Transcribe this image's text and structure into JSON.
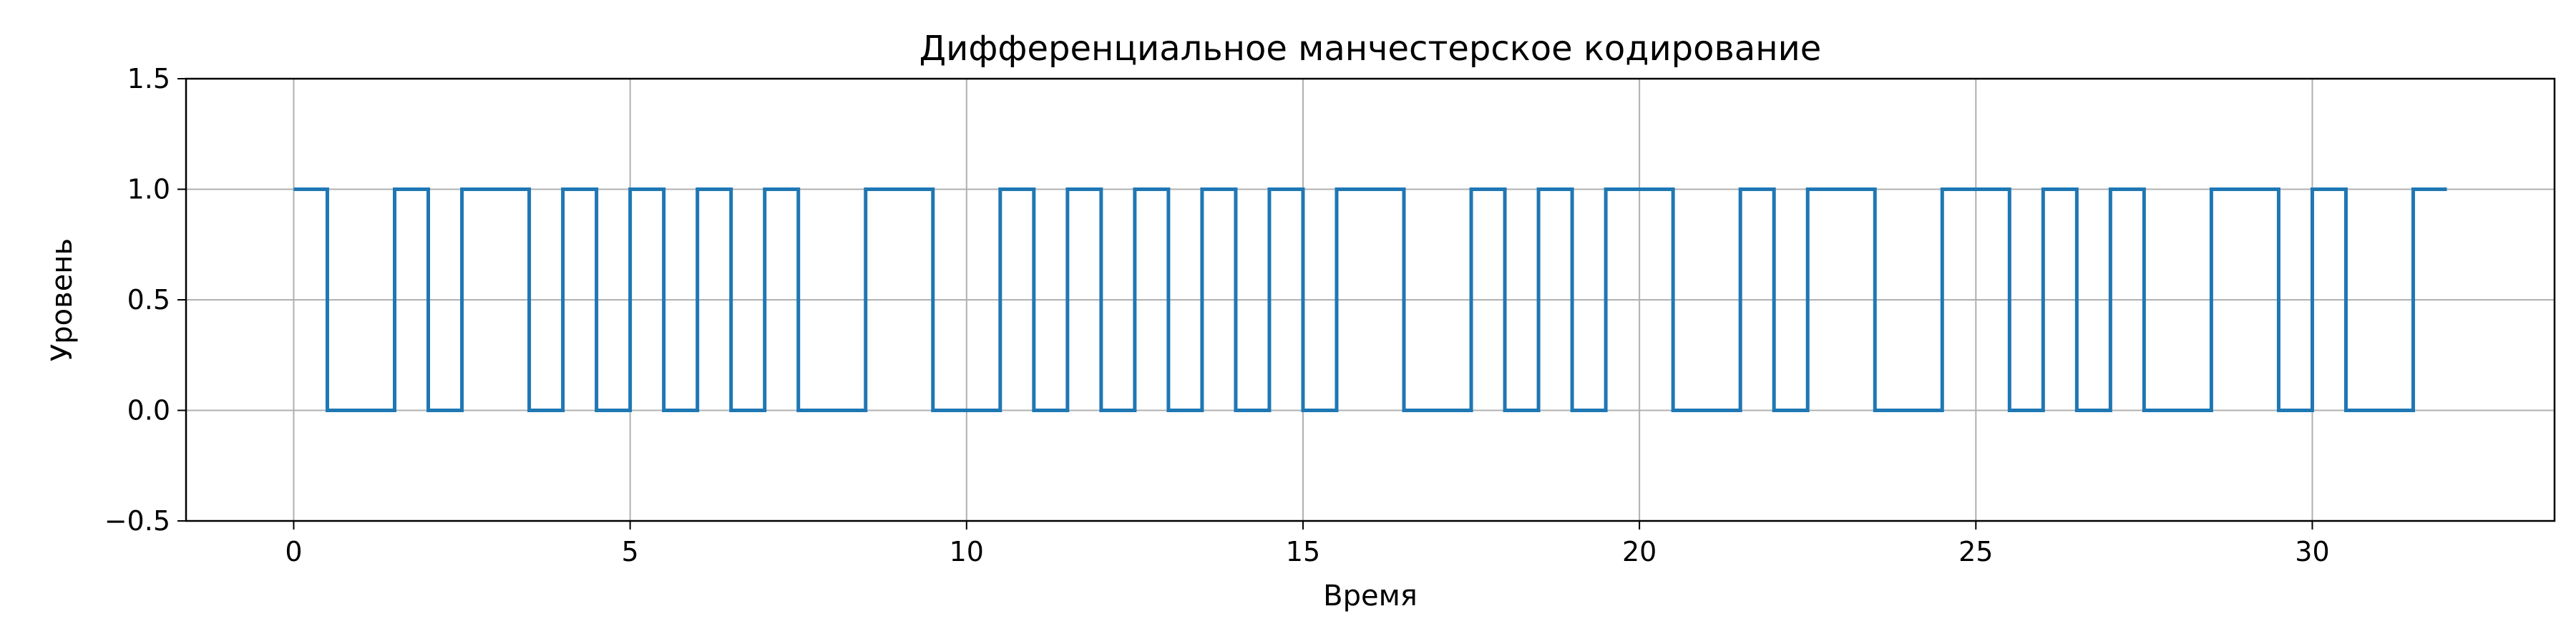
{
  "chart_data": {
    "type": "line",
    "step": "post",
    "title": "Дифференциальное манчестерское кодирование",
    "xlabel": "Время",
    "ylabel": "Уровень",
    "xlim": [
      -1.6,
      33.6
    ],
    "ylim": [
      -0.5,
      1.5
    ],
    "xticks": [
      0,
      5,
      10,
      15,
      20,
      25,
      30
    ],
    "xtick_labels": [
      "0",
      "5",
      "10",
      "15",
      "20",
      "25",
      "30"
    ],
    "yticks": [
      -0.5,
      0.0,
      0.5,
      1.0,
      1.5
    ],
    "ytick_labels": [
      "−0.5",
      "0.0",
      "0.5",
      "1.0",
      "1.5"
    ],
    "grid": true,
    "colors": {
      "series": "#1f77b4",
      "grid": "#b0b0b0",
      "axes": "#000000"
    },
    "series": [
      {
        "x": [
          0,
          0.5,
          1.5,
          2,
          2.5,
          3.5,
          4,
          4.5,
          5,
          5.5,
          6,
          6.5,
          7,
          7.5,
          8.5,
          9.5,
          10.5,
          11,
          11.5,
          12,
          12.5,
          13,
          13.5,
          14,
          14.5,
          15,
          15.5,
          16.5,
          17.5,
          18,
          18.5,
          19,
          19.5,
          20.5,
          21.5,
          22,
          22.5,
          23.5,
          24.5,
          25.5,
          26,
          26.5,
          27,
          27.5,
          28.5,
          29.5,
          30,
          30.5,
          31.5,
          32
        ],
        "y": [
          1,
          0,
          1,
          0,
          1,
          0,
          1,
          0,
          1,
          0,
          1,
          0,
          1,
          0,
          1,
          0,
          1,
          0,
          1,
          0,
          1,
          0,
          1,
          0,
          1,
          0,
          1,
          0,
          1,
          0,
          1,
          0,
          1,
          0,
          1,
          0,
          1,
          0,
          1,
          0,
          1,
          0,
          1,
          0,
          1,
          0,
          1,
          0,
          1,
          1
        ]
      }
    ]
  }
}
